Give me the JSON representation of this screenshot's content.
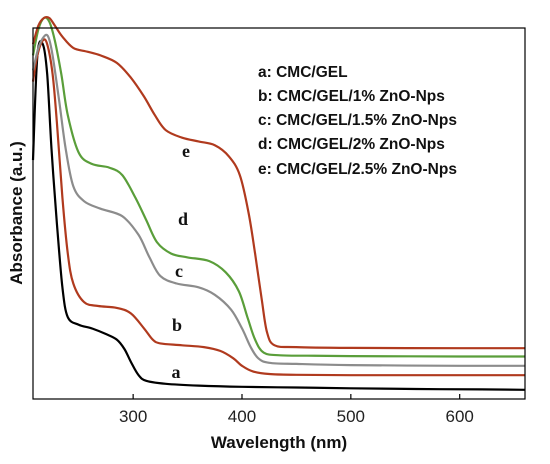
{
  "chart_data": {
    "type": "line",
    "xlabel": "Wavelength (nm)",
    "ylabel": "Absorbance (a.u.)",
    "xlim": [
      208,
      660
    ],
    "ylim": [
      0,
      1.0
    ],
    "x_ticks": [
      300,
      400,
      500,
      600
    ],
    "y_ticks_shown": false,
    "grid": false,
    "legend_position": "top-right",
    "legend": [
      "a: CMC/GEL",
      "b: CMC/GEL/1% ZnO-Nps",
      "c: CMC/GEL/1.5% ZnO-Nps",
      "d: CMC/GEL/2% ZnO-Nps",
      "e: CMC/GEL/2.5% ZnO-Nps"
    ],
    "series": [
      {
        "label": "a",
        "color": "#000000",
        "points": [
          [
            208,
            0.62
          ],
          [
            212,
            0.9
          ],
          [
            217,
            0.93
          ],
          [
            221,
            0.85
          ],
          [
            225,
            0.65
          ],
          [
            230,
            0.45
          ],
          [
            235,
            0.28
          ],
          [
            240,
            0.2
          ],
          [
            250,
            0.18
          ],
          [
            262,
            0.17
          ],
          [
            275,
            0.155
          ],
          [
            285,
            0.14
          ],
          [
            292,
            0.115
          ],
          [
            298,
            0.08
          ],
          [
            305,
            0.045
          ],
          [
            312,
            0.03
          ],
          [
            330,
            0.022
          ],
          [
            360,
            0.017
          ],
          [
            400,
            0.014
          ],
          [
            450,
            0.012
          ],
          [
            500,
            0.01
          ],
          [
            560,
            0.008
          ],
          [
            620,
            0.007
          ],
          [
            660,
            0.006
          ]
        ]
      },
      {
        "label": "b",
        "color": "#b03a1e",
        "points": [
          [
            208,
            0.83
          ],
          [
            212,
            0.9
          ],
          [
            217,
            0.94
          ],
          [
            221,
            0.93
          ],
          [
            226,
            0.85
          ],
          [
            230,
            0.72
          ],
          [
            235,
            0.52
          ],
          [
            240,
            0.37
          ],
          [
            245,
            0.29
          ],
          [
            255,
            0.24
          ],
          [
            268,
            0.23
          ],
          [
            285,
            0.225
          ],
          [
            298,
            0.21
          ],
          [
            310,
            0.17
          ],
          [
            318,
            0.14
          ],
          [
            325,
            0.13
          ],
          [
            345,
            0.125
          ],
          [
            365,
            0.12
          ],
          [
            380,
            0.11
          ],
          [
            392,
            0.09
          ],
          [
            400,
            0.07
          ],
          [
            410,
            0.055
          ],
          [
            425,
            0.048
          ],
          [
            450,
            0.046
          ],
          [
            500,
            0.045
          ],
          [
            600,
            0.045
          ],
          [
            660,
            0.045
          ]
        ]
      },
      {
        "label": "c",
        "color": "#8c8c8c",
        "points": [
          [
            208,
            0.86
          ],
          [
            213,
            0.92
          ],
          [
            218,
            0.95
          ],
          [
            222,
            0.95
          ],
          [
            226,
            0.9
          ],
          [
            232,
            0.78
          ],
          [
            238,
            0.65
          ],
          [
            245,
            0.55
          ],
          [
            255,
            0.51
          ],
          [
            270,
            0.49
          ],
          [
            290,
            0.47
          ],
          [
            305,
            0.42
          ],
          [
            315,
            0.36
          ],
          [
            325,
            0.31
          ],
          [
            340,
            0.29
          ],
          [
            360,
            0.28
          ],
          [
            375,
            0.26
          ],
          [
            390,
            0.22
          ],
          [
            400,
            0.17
          ],
          [
            408,
            0.12
          ],
          [
            415,
            0.09
          ],
          [
            425,
            0.078
          ],
          [
            450,
            0.075
          ],
          [
            500,
            0.072
          ],
          [
            600,
            0.07
          ],
          [
            660,
            0.07
          ]
        ]
      },
      {
        "label": "d",
        "color": "#5a9e3a",
        "points": [
          [
            208,
            0.9
          ],
          [
            213,
            0.97
          ],
          [
            218,
            1.0
          ],
          [
            223,
            0.99
          ],
          [
            228,
            0.94
          ],
          [
            234,
            0.85
          ],
          [
            240,
            0.74
          ],
          [
            250,
            0.64
          ],
          [
            262,
            0.61
          ],
          [
            278,
            0.6
          ],
          [
            290,
            0.58
          ],
          [
            302,
            0.52
          ],
          [
            312,
            0.46
          ],
          [
            322,
            0.4
          ],
          [
            335,
            0.37
          ],
          [
            350,
            0.36
          ],
          [
            370,
            0.35
          ],
          [
            385,
            0.32
          ],
          [
            397,
            0.27
          ],
          [
            405,
            0.2
          ],
          [
            412,
            0.14
          ],
          [
            420,
            0.105
          ],
          [
            435,
            0.098
          ],
          [
            460,
            0.097
          ],
          [
            500,
            0.096
          ],
          [
            600,
            0.095
          ],
          [
            660,
            0.095
          ]
        ]
      },
      {
        "label": "e",
        "color": "#b03a1e",
        "points": [
          [
            208,
            0.93
          ],
          [
            213,
            0.98
          ],
          [
            218,
            1.0
          ],
          [
            223,
            1.0
          ],
          [
            228,
            0.98
          ],
          [
            235,
            0.95
          ],
          [
            245,
            0.92
          ],
          [
            258,
            0.91
          ],
          [
            270,
            0.9
          ],
          [
            285,
            0.88
          ],
          [
            298,
            0.84
          ],
          [
            310,
            0.79
          ],
          [
            320,
            0.74
          ],
          [
            330,
            0.7
          ],
          [
            345,
            0.68
          ],
          [
            360,
            0.67
          ],
          [
            375,
            0.66
          ],
          [
            388,
            0.63
          ],
          [
            398,
            0.58
          ],
          [
            406,
            0.48
          ],
          [
            412,
            0.37
          ],
          [
            418,
            0.25
          ],
          [
            423,
            0.16
          ],
          [
            430,
            0.125
          ],
          [
            450,
            0.12
          ],
          [
            500,
            0.118
          ],
          [
            600,
            0.117
          ],
          [
            660,
            0.117
          ]
        ]
      }
    ]
  }
}
